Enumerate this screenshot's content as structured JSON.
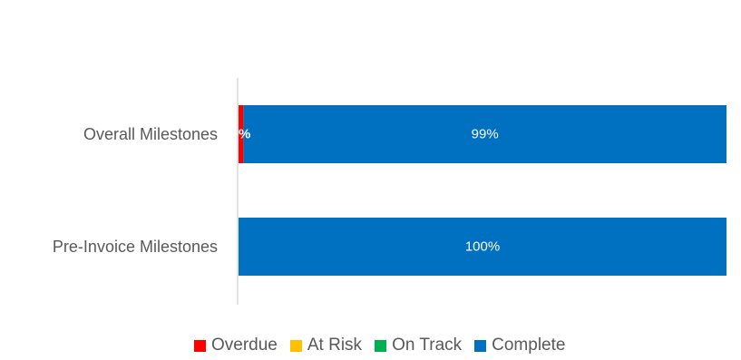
{
  "chart_data": {
    "type": "bar",
    "orientation": "horizontal",
    "stacked": true,
    "percent_stacked": true,
    "title": "",
    "xlabel": "",
    "ylabel": "",
    "xlim": [
      0,
      100
    ],
    "grid": false,
    "legend_position": "bottom",
    "categories": [
      "Overall Milestones",
      "Pre-Invoice Milestones"
    ],
    "series": [
      {
        "name": "Overdue",
        "color": "#ff0000",
        "values": [
          1,
          0
        ],
        "labels": [
          "%",
          ""
        ]
      },
      {
        "name": "At Risk",
        "color": "#ffc000",
        "values": [
          0,
          0
        ],
        "labels": [
          "",
          ""
        ]
      },
      {
        "name": "On Track",
        "color": "#00b050",
        "values": [
          0,
          0
        ],
        "labels": [
          "",
          ""
        ]
      },
      {
        "name": "Complete",
        "color": "#0070c0",
        "values": [
          99,
          100
        ],
        "labels": [
          "99%",
          "100%"
        ]
      }
    ]
  }
}
